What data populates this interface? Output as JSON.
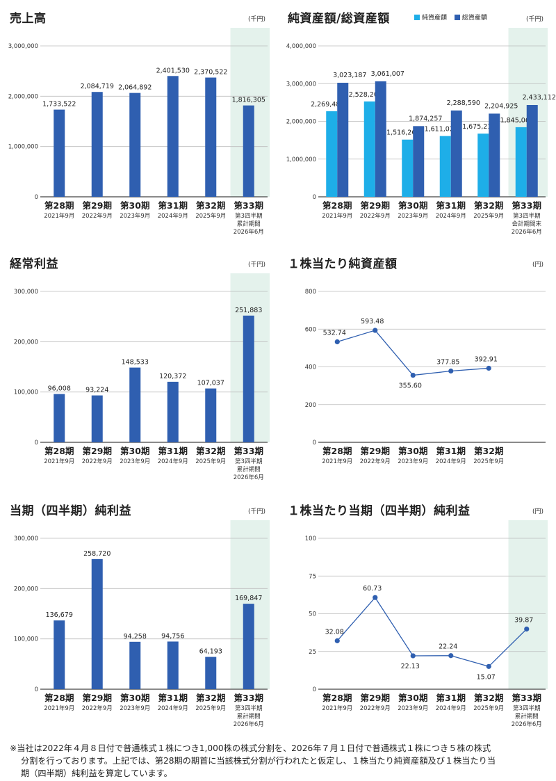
{
  "colors": {
    "bar": "#2f5fb0",
    "bar_light": "#1eaee8",
    "highlight": "#e4f2ec",
    "grid": "#bbbbbb",
    "line": "#2f5fb0"
  },
  "chart_data": [
    {
      "id": "sales",
      "type": "bar",
      "title": "売上高",
      "unit": "(千円)",
      "ylim": [
        0,
        3000000
      ],
      "yticks": [
        "0",
        "1,000,000",
        "2,000,000",
        "3,000,000"
      ],
      "categories": [
        "第28期",
        "第29期",
        "第30期",
        "第31期",
        "第32期",
        "第33期"
      ],
      "sublabels": [
        [
          "2021年9月"
        ],
        [
          "2022年9月"
        ],
        [
          "2023年9月"
        ],
        [
          "2024年9月"
        ],
        [
          "2025年9月"
        ],
        [
          "第3四半期",
          "累計期間",
          "2026年6月"
        ]
      ],
      "highlight_index": 5,
      "series": [
        {
          "values": [
            1733522,
            2084719,
            2064892,
            2401530,
            2370522,
            1816305
          ],
          "labels": [
            "1,733,522",
            "2,084,719",
            "2,064,892",
            "2,401,530",
            "2,370,522",
            "1,816,305"
          ]
        }
      ]
    },
    {
      "id": "assets",
      "type": "bar",
      "title": "純資産額/総資産額",
      "unit": "(千円)",
      "ylim": [
        0,
        4000000
      ],
      "yticks": [
        "0",
        "1,000,000",
        "2,000,000",
        "3,000,000",
        "4,000,000"
      ],
      "categories": [
        "第28期",
        "第29期",
        "第30期",
        "第31期",
        "第32期",
        "第33期"
      ],
      "sublabels": [
        [
          "2021年9月"
        ],
        [
          "2022年9月"
        ],
        [
          "2023年9月"
        ],
        [
          "2024年9月"
        ],
        [
          "2025年9月"
        ],
        [
          "第3四半期",
          "会計期間末",
          "2026年6月"
        ]
      ],
      "highlight_index": 5,
      "legend": [
        "純資産額",
        "総資産額"
      ],
      "series": [
        {
          "name": "純資産額",
          "values": [
            2269487,
            2528207,
            1516264,
            1611021,
            1675214,
            1845061
          ],
          "labels": [
            "2,269,487",
            "2,528,207",
            "1,516,264",
            "1,611,021",
            "1,675,214",
            "1,845,061"
          ]
        },
        {
          "name": "総資産額",
          "values": [
            3023187,
            3061007,
            1874257,
            2288590,
            2204925,
            2433112
          ],
          "labels": [
            "3,023,187",
            "3,061,007",
            "1,874,257",
            "2,288,590",
            "2,204,925",
            "2,433,112"
          ]
        }
      ]
    },
    {
      "id": "ordinary",
      "type": "bar",
      "title": "経常利益",
      "unit": "(千円)",
      "ylim": [
        0,
        300000
      ],
      "yticks": [
        "0",
        "100,000",
        "200,000",
        "300,000"
      ],
      "categories": [
        "第28期",
        "第29期",
        "第30期",
        "第31期",
        "第32期",
        "第33期"
      ],
      "sublabels": [
        [
          "2021年9月"
        ],
        [
          "2022年9月"
        ],
        [
          "2023年9月"
        ],
        [
          "2024年9月"
        ],
        [
          "2025年9月"
        ],
        [
          "第3四半期",
          "累計期間",
          "2026年6月"
        ]
      ],
      "highlight_index": 5,
      "series": [
        {
          "values": [
            96008,
            93224,
            148533,
            120372,
            107037,
            251883
          ],
          "labels": [
            "96,008",
            "93,224",
            "148,533",
            "120,372",
            "107,037",
            "251,883"
          ]
        }
      ]
    },
    {
      "id": "bps",
      "type": "line",
      "title": "１株当たり純資産額",
      "unit": "(円)",
      "ylim": [
        0,
        800
      ],
      "yticks": [
        "0",
        "200",
        "400",
        "600",
        "800"
      ],
      "categories": [
        "第28期",
        "第29期",
        "第30期",
        "第31期",
        "第32期"
      ],
      "sublabels": [
        [
          "2021年9月"
        ],
        [
          "2022年9月"
        ],
        [
          "2023年9月"
        ],
        [
          "2024年9月"
        ],
        [
          "2025年9月"
        ]
      ],
      "highlight_index": null,
      "series": [
        {
          "values": [
            532.74,
            593.48,
            355.6,
            377.85,
            392.91
          ],
          "labels": [
            "532.74",
            "593.48",
            "355.60",
            "377.85",
            "392.91"
          ]
        }
      ]
    },
    {
      "id": "netincome",
      "type": "bar",
      "title": "当期（四半期）純利益",
      "unit": "(千円)",
      "ylim": [
        0,
        300000
      ],
      "yticks": [
        "0",
        "100,000",
        "200,000",
        "300,000"
      ],
      "categories": [
        "第28期",
        "第29期",
        "第30期",
        "第31期",
        "第32期",
        "第33期"
      ],
      "sublabels": [
        [
          "2021年9月"
        ],
        [
          "2022年9月"
        ],
        [
          "2023年9月"
        ],
        [
          "2024年9月"
        ],
        [
          "2025年9月"
        ],
        [
          "第3四半期",
          "累計期間",
          "2026年6月"
        ]
      ],
      "highlight_index": 5,
      "series": [
        {
          "values": [
            136679,
            258720,
            94258,
            94756,
            64193,
            169847
          ],
          "labels": [
            "136,679",
            "258,720",
            "94,258",
            "94,756",
            "64,193",
            "169,847"
          ]
        }
      ]
    },
    {
      "id": "eps",
      "type": "line",
      "title": "１株当たり当期（四半期）純利益",
      "unit": "(円)",
      "ylim": [
        0,
        100
      ],
      "yticks": [
        "0",
        "25",
        "50",
        "75",
        "100"
      ],
      "categories": [
        "第28期",
        "第29期",
        "第30期",
        "第31期",
        "第32期",
        "第33期"
      ],
      "sublabels": [
        [
          "2021年9月"
        ],
        [
          "2022年9月"
        ],
        [
          "2023年9月"
        ],
        [
          "2024年9月"
        ],
        [
          "2025年9月"
        ],
        [
          "第3四半期",
          "累計期間",
          "2026年6月"
        ]
      ],
      "highlight_index": 5,
      "series": [
        {
          "values": [
            32.08,
            60.73,
            22.13,
            22.24,
            15.07,
            39.87
          ],
          "labels": [
            "32.08",
            "60.73",
            "22.13",
            "22.24",
            "15.07",
            "39.87"
          ]
        }
      ]
    }
  ],
  "footnote": [
    "※当社は2022年４月８日付で普通株式１株につき1,000株の株式分割を、2026年７月１日付で普通株式１株につき５株の株式",
    "分割を行っております。上記では、第28期の期首に当該株式分割が行われたと仮定し、１株当たり純資産額及び１株当たり当",
    "期（四半期）純利益を算定しています。"
  ]
}
